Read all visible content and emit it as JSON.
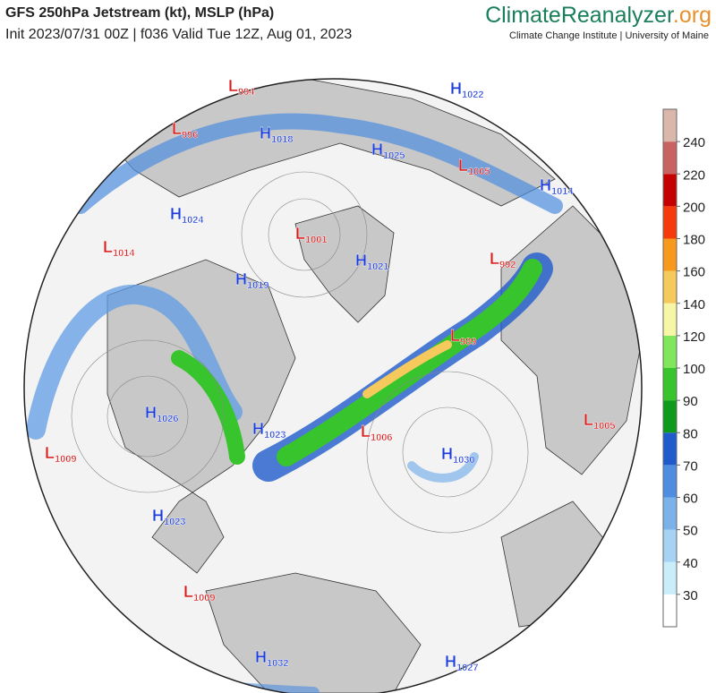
{
  "header": {
    "title": "GFS 250hPa Jetstream (kt), MSLP (hPa)",
    "subtitle": "Init 2023/07/31 00Z | f036 Valid Tue 12Z, Aug 01, 2023",
    "brand_name": "ClimateReanalyzer",
    "brand_suffix": ".org",
    "affiliation": "Climate Change Institute | University of Maine"
  },
  "map": {
    "high_color": "#1a3cd8",
    "low_color": "#d81a1a",
    "pressure_centers": [
      {
        "letter": "L",
        "value": 994
      },
      {
        "letter": "H",
        "value": 1022
      },
      {
        "letter": "L",
        "value": 996
      },
      {
        "letter": "H",
        "value": 1018
      },
      {
        "letter": "H",
        "value": 1025
      },
      {
        "letter": "L",
        "value": 1005
      },
      {
        "letter": "H",
        "value": 1014
      },
      {
        "letter": "H",
        "value": 1024
      },
      {
        "letter": "L",
        "value": 1014
      },
      {
        "letter": "L",
        "value": 1001
      },
      {
        "letter": "H",
        "value": 1021
      },
      {
        "letter": "L",
        "value": 992
      },
      {
        "letter": "H",
        "value": 1019
      },
      {
        "letter": "L",
        "value": 989
      },
      {
        "letter": "H",
        "value": 1026
      },
      {
        "letter": "H",
        "value": 1023
      },
      {
        "letter": "L",
        "value": 1006
      },
      {
        "letter": "L",
        "value": 1005
      },
      {
        "letter": "L",
        "value": 1009
      },
      {
        "letter": "H",
        "value": 1030
      },
      {
        "letter": "H",
        "value": 1023
      },
      {
        "letter": "L",
        "value": 1009
      },
      {
        "letter": "H",
        "value": 1032
      },
      {
        "letter": "H",
        "value": 1027
      }
    ]
  },
  "colorbar": {
    "ticks": [
      30,
      40,
      50,
      60,
      70,
      80,
      90,
      100,
      120,
      140,
      160,
      180,
      200,
      220,
      240
    ],
    "colors": [
      "#ffffff",
      "#c9eef9",
      "#a6d3f3",
      "#7cb2ea",
      "#4f8de0",
      "#1f5bcc",
      "#0e9a1c",
      "#38c42c",
      "#80e65c",
      "#f7f5a6",
      "#f6c95c",
      "#f6991c",
      "#f53a0c",
      "#c40000",
      "#c96363",
      "#dbb6aa"
    ]
  }
}
